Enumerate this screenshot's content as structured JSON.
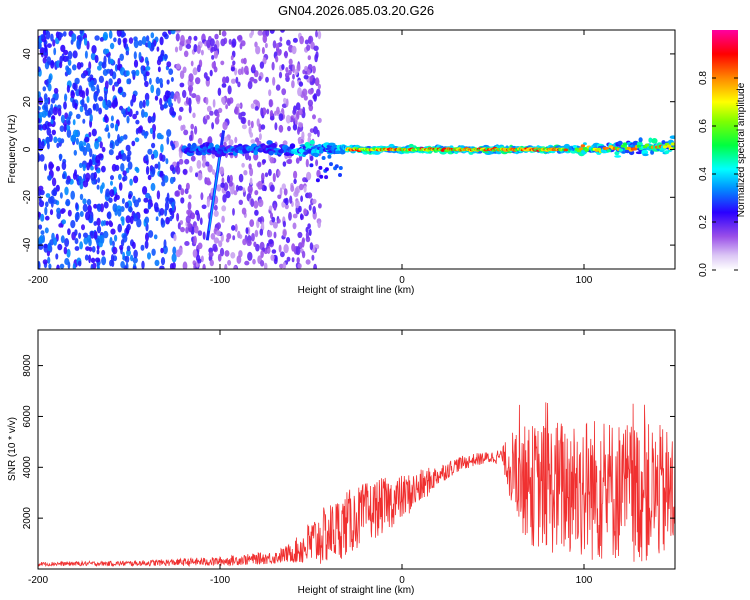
{
  "title": "GN04.2026.085.03.20.G26",
  "chart_data": [
    {
      "type": "heatmap",
      "xlabel": "Height of straight line (km)",
      "ylabel": "Frequency (Hz)",
      "xlim": [
        -200,
        150
      ],
      "ylim": [
        -50,
        50
      ],
      "xticks": [
        -200,
        -100,
        0,
        100
      ],
      "xtick_labels": [
        "-200",
        "-100",
        "0",
        "100"
      ],
      "yticks": [
        -40,
        -20,
        0,
        20,
        40
      ],
      "ytick_labels": [
        "-40",
        "-20",
        "0",
        "20",
        "40"
      ],
      "colorbar": {
        "label": "Normalized spectral amplitude",
        "range": [
          0,
          1
        ],
        "ticks": [
          0.0,
          0.2,
          0.4,
          0.6,
          0.8
        ],
        "tick_labels": [
          "0.0",
          "0.2",
          "0.4",
          "0.6",
          "0.8"
        ]
      },
      "features": {
        "noise_region_km": [
          -200,
          -60
        ],
        "tone_ridge_freq_hz": 0,
        "tone_ridge_km": [
          -120,
          150
        ],
        "strong_ridge_km": [
          -30,
          90
        ],
        "diagonal_streak": {
          "km_start": -107,
          "freq_start": -38,
          "km_end": -98,
          "freq_end": 8
        }
      }
    },
    {
      "type": "line",
      "xlabel": "Height of straight line (km)",
      "ylabel": "SNR (10 * v/v)",
      "xlim": [
        -200,
        150
      ],
      "ylim": [
        0,
        9400
      ],
      "xticks": [
        -200,
        -100,
        0,
        100
      ],
      "xtick_labels": [
        "-200",
        "-100",
        "0",
        "100"
      ],
      "yticks": [
        2000,
        4000,
        6000,
        8000
      ],
      "ytick_labels": [
        "2000",
        "4000",
        "6000",
        "8000"
      ],
      "series": [
        {
          "name": "SNR",
          "color": "#f03030",
          "envelope_x": [
            -200,
            -150,
            -100,
            -70,
            -60,
            -50,
            -40,
            -30,
            -20,
            -10,
            0,
            10,
            20,
            30,
            40,
            50,
            55,
            60,
            65,
            70,
            80,
            90,
            100,
            110,
            120,
            130,
            140,
            150
          ],
          "envelope_mean": [
            200,
            220,
            300,
            450,
            650,
            1000,
            1400,
            1800,
            2200,
            2500,
            2800,
            3200,
            3700,
            4100,
            4300,
            4400,
            4450,
            4000,
            3600,
            3300,
            3200,
            3200,
            3200,
            3100,
            3100,
            3000,
            3000,
            2900
          ],
          "envelope_spread": [
            80,
            100,
            180,
            250,
            400,
            1000,
            1200,
            1300,
            1200,
            1100,
            900,
            700,
            400,
            300,
            250,
            250,
            300,
            1500,
            2000,
            2400,
            2600,
            2800,
            2900,
            2900,
            2800,
            2800,
            2700,
            2600
          ]
        }
      ]
    }
  ]
}
